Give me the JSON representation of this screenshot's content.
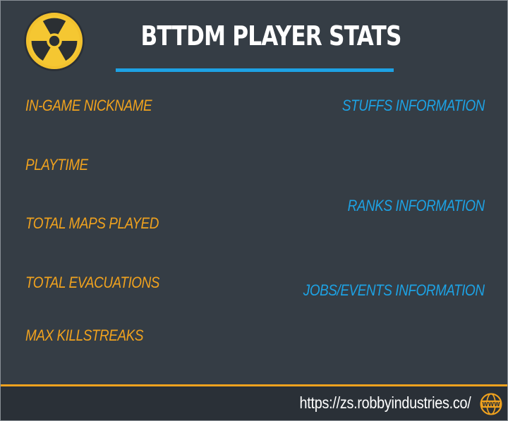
{
  "header": {
    "title": "BTTDM PLAYER STATS",
    "logo_icon": "radiation-icon",
    "accent_color": "#1da2e4"
  },
  "stats": {
    "color": "#f0a21e",
    "items": [
      {
        "label": "IN-GAME NICKNAME"
      },
      {
        "label": "PLAYTIME"
      },
      {
        "label": "TOTAL MAPS PLAYED"
      },
      {
        "label": "TOTAL EVACUATIONS"
      },
      {
        "label": "MAX KILLSTREAKS"
      }
    ]
  },
  "info": {
    "color": "#1da2e4",
    "items": [
      {
        "label": "STUFFS INFORMATION"
      },
      {
        "label": "RANKS INFORMATION"
      },
      {
        "label": "JOBS/EVENTS INFORMATION"
      }
    ]
  },
  "footer": {
    "url": "https://zs.robbyindustries.co/",
    "www_icon": "globe-www-icon",
    "www_label": "WWW"
  }
}
